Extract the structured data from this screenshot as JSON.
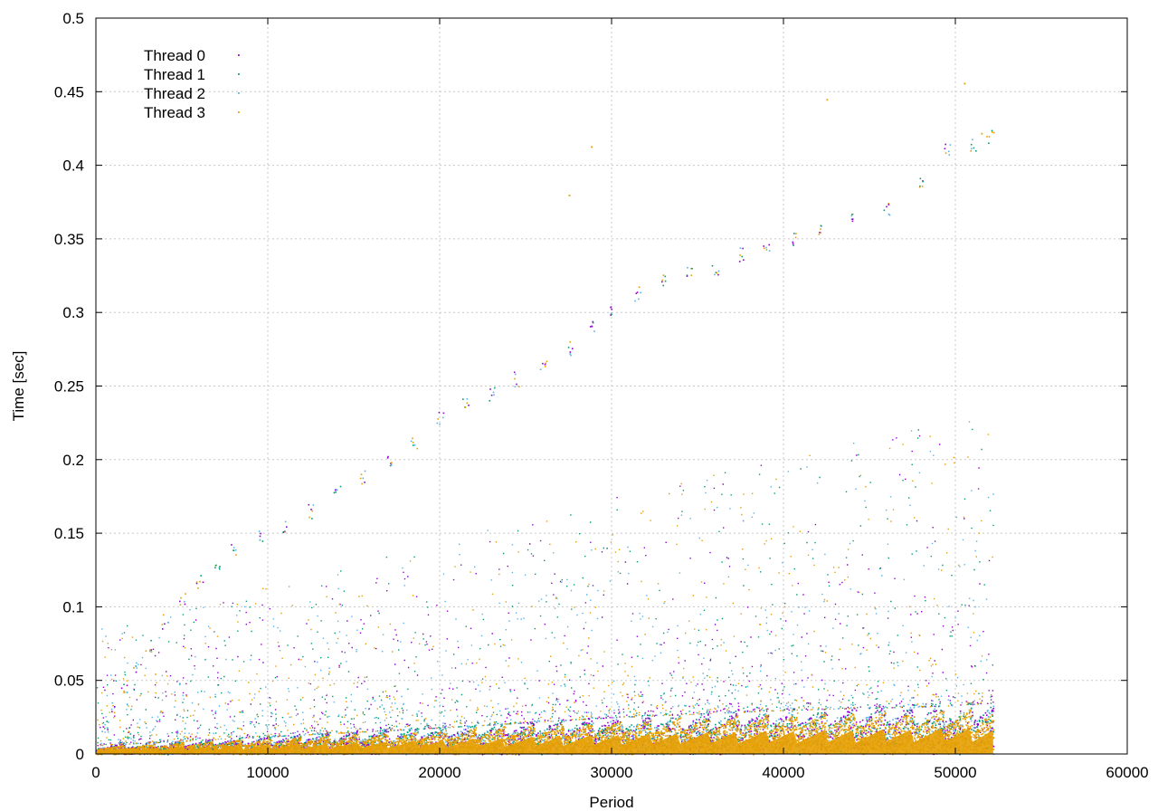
{
  "chart_data": {
    "type": "scatter",
    "title": "",
    "xlabel": "Period",
    "ylabel": "Time [sec]",
    "xlim": [
      0,
      60000
    ],
    "ylim": [
      0,
      0.5
    ],
    "x_ticks": [
      0,
      10000,
      20000,
      30000,
      40000,
      50000,
      60000
    ],
    "y_ticks": [
      0,
      0.05,
      0.1,
      0.15,
      0.2,
      0.25,
      0.3,
      0.35,
      0.4,
      0.45,
      0.5
    ],
    "x_tick_labels": [
      "0",
      "10000",
      "20000",
      "30000",
      "40000",
      "50000",
      "60000"
    ],
    "y_tick_labels": [
      "0",
      "0.05",
      "0.1",
      "0.15",
      "0.2",
      "0.25",
      "0.3",
      "0.35",
      "0.4",
      "0.45",
      "0.5"
    ],
    "grid": true,
    "legend_position": "top-left",
    "series": [
      {
        "name": "Thread 0",
        "color": "#9400d3"
      },
      {
        "name": "Thread 1",
        "color": "#009e73"
      },
      {
        "name": "Thread 2",
        "color": "#56b4e9"
      },
      {
        "name": "Thread 3",
        "color": "#e69f00"
      }
    ],
    "observed_range": {
      "x_max": 52200,
      "dense_band_top": {
        "x": [
          0,
          10000,
          20000,
          30000,
          40000,
          50000,
          52200
        ],
        "y": [
          0.006,
          0.012,
          0.018,
          0.025,
          0.03,
          0.033,
          0.035
        ]
      }
    },
    "trend_points": [
      {
        "x": 500,
        "y": 0.02
      },
      {
        "x": 1000,
        "y": 0.033
      },
      {
        "x": 1600,
        "y": 0.045
      },
      {
        "x": 2200,
        "y": 0.058
      },
      {
        "x": 3000,
        "y": 0.073
      },
      {
        "x": 4000,
        "y": 0.09
      },
      {
        "x": 5000,
        "y": 0.105
      },
      {
        "x": 6000,
        "y": 0.117
      },
      {
        "x": 7000,
        "y": 0.13
      },
      {
        "x": 8000,
        "y": 0.14
      },
      {
        "x": 9500,
        "y": 0.148
      },
      {
        "x": 11000,
        "y": 0.155
      },
      {
        "x": 12500,
        "y": 0.165
      },
      {
        "x": 14000,
        "y": 0.178
      },
      {
        "x": 15500,
        "y": 0.188
      },
      {
        "x": 17000,
        "y": 0.2
      },
      {
        "x": 18500,
        "y": 0.212
      },
      {
        "x": 20000,
        "y": 0.228
      },
      {
        "x": 21500,
        "y": 0.238
      },
      {
        "x": 23000,
        "y": 0.245
      },
      {
        "x": 24500,
        "y": 0.255
      },
      {
        "x": 26000,
        "y": 0.265
      },
      {
        "x": 27500,
        "y": 0.276
      },
      {
        "x": 28800,
        "y": 0.29
      },
      {
        "x": 30000,
        "y": 0.3
      },
      {
        "x": 31500,
        "y": 0.313
      },
      {
        "x": 33000,
        "y": 0.322
      },
      {
        "x": 34500,
        "y": 0.327
      },
      {
        "x": 36000,
        "y": 0.33
      },
      {
        "x": 37500,
        "y": 0.34
      },
      {
        "x": 39000,
        "y": 0.345
      },
      {
        "x": 40500,
        "y": 0.35
      },
      {
        "x": 42000,
        "y": 0.358
      },
      {
        "x": 44000,
        "y": 0.365
      },
      {
        "x": 46000,
        "y": 0.37
      },
      {
        "x": 48000,
        "y": 0.39
      },
      {
        "x": 49500,
        "y": 0.41
      },
      {
        "x": 51000,
        "y": 0.415
      },
      {
        "x": 52000,
        "y": 0.42
      }
    ],
    "notable_outliers": [
      {
        "x": 27500,
        "y": 0.38
      },
      {
        "x": 28800,
        "y": 0.413
      },
      {
        "x": 42500,
        "y": 0.445
      },
      {
        "x": 50500,
        "y": 0.456
      },
      {
        "x": 51500,
        "y": 0.422
      }
    ]
  }
}
